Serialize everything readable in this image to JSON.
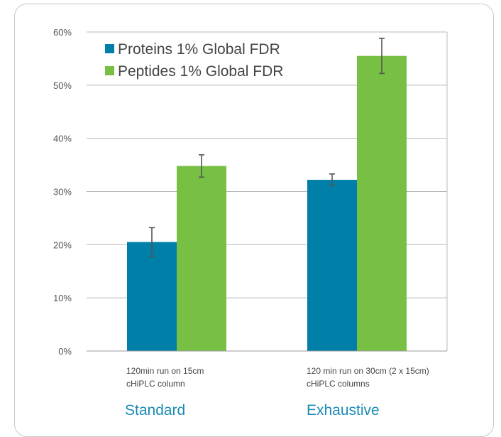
{
  "chart_data": {
    "type": "bar",
    "categories": [
      "120min run on 15cm cHiPLC column",
      "120 min run on 30cm (2 x 15cm) cHiPLC columns"
    ],
    "category_lines": [
      [
        "120min run on 15cm",
        "cHiPLC column"
      ],
      [
        "120 min run on 30cm (2 x 15cm)",
        "cHiPLC columns"
      ]
    ],
    "group_labels": [
      "Standard",
      "Exhaustive"
    ],
    "series": [
      {
        "name": "Proteins 1% Global FDR",
        "values": [
          20.5,
          32.2
        ],
        "errors": [
          2.7,
          1.1
        ],
        "color": "#0080a8"
      },
      {
        "name": "Peptides 1% Global FDR",
        "values": [
          34.8,
          55.5
        ],
        "errors": [
          2.1,
          3.3
        ],
        "color": "#77c043"
      }
    ],
    "yticks": [
      "0%",
      "10%",
      "20%",
      "30%",
      "40%",
      "50%",
      "60%"
    ],
    "ylim": [
      0,
      60
    ],
    "grid": true,
    "legend_position": "top-left",
    "group_label_color": "#1a8bb3",
    "error_bar_color": "#555555"
  }
}
